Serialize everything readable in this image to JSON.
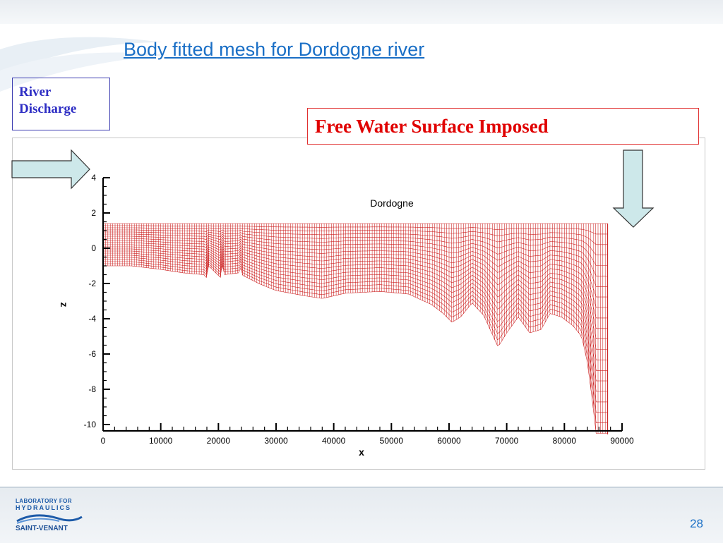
{
  "slide": {
    "title": "Body fitted mesh for Dordogne river",
    "page_number": "28"
  },
  "annotations": {
    "river_discharge": [
      "River",
      "Discharge"
    ],
    "free_surface": "Free Water Surface Imposed"
  },
  "footer": {
    "logo_line1": "LABORATORY FOR",
    "logo_line2": "HYDRAULICS",
    "logo_line3": "SAINT-VENANT"
  },
  "colors": {
    "mesh": "#cc1f1f",
    "arrow_fill": "#cde8ea",
    "title": "#1a6fc6"
  },
  "chart_data": {
    "type": "mesh",
    "title": "Dordogne",
    "xlabel": "x",
    "ylabel": "z",
    "xlim": [
      0,
      90000
    ],
    "ylim": [
      -10,
      4
    ],
    "xticks": [
      0,
      10000,
      20000,
      30000,
      40000,
      50000,
      60000,
      70000,
      80000,
      90000
    ],
    "yticks": [
      -10,
      -8,
      -6,
      -4,
      -2,
      0,
      2,
      4
    ],
    "surface": {
      "z": 1.4,
      "x_start": 0,
      "x_end": 87500
    },
    "bed_profile": {
      "x": [
        0,
        5000,
        10000,
        14000,
        17500,
        18000,
        18300,
        20500,
        20700,
        21000,
        23500,
        23700,
        24000,
        27000,
        30000,
        35000,
        38000,
        42000,
        48000,
        53000,
        57000,
        59000,
        60500,
        62000,
        64000,
        66000,
        68500,
        70000,
        72000,
        74000,
        76000,
        77500,
        79500,
        81500,
        83000,
        84000,
        84800,
        85500,
        86300
      ],
      "z": [
        -1.0,
        -1.0,
        -1.2,
        -1.4,
        -1.5,
        -1.7,
        -1.0,
        -1.7,
        -0.9,
        -1.5,
        -1.4,
        -0.7,
        -1.5,
        -2.0,
        -2.4,
        -2.7,
        -2.85,
        -2.55,
        -2.45,
        -2.6,
        -3.2,
        -3.7,
        -4.2,
        -3.9,
        -3.1,
        -3.8,
        -5.6,
        -4.8,
        -3.9,
        -4.8,
        -4.6,
        -3.7,
        -3.9,
        -4.4,
        -5.0,
        -6.5,
        -8.5,
        -10.5,
        -10.5
      ]
    },
    "mesh": {
      "horizontal_layers": 20
    }
  }
}
